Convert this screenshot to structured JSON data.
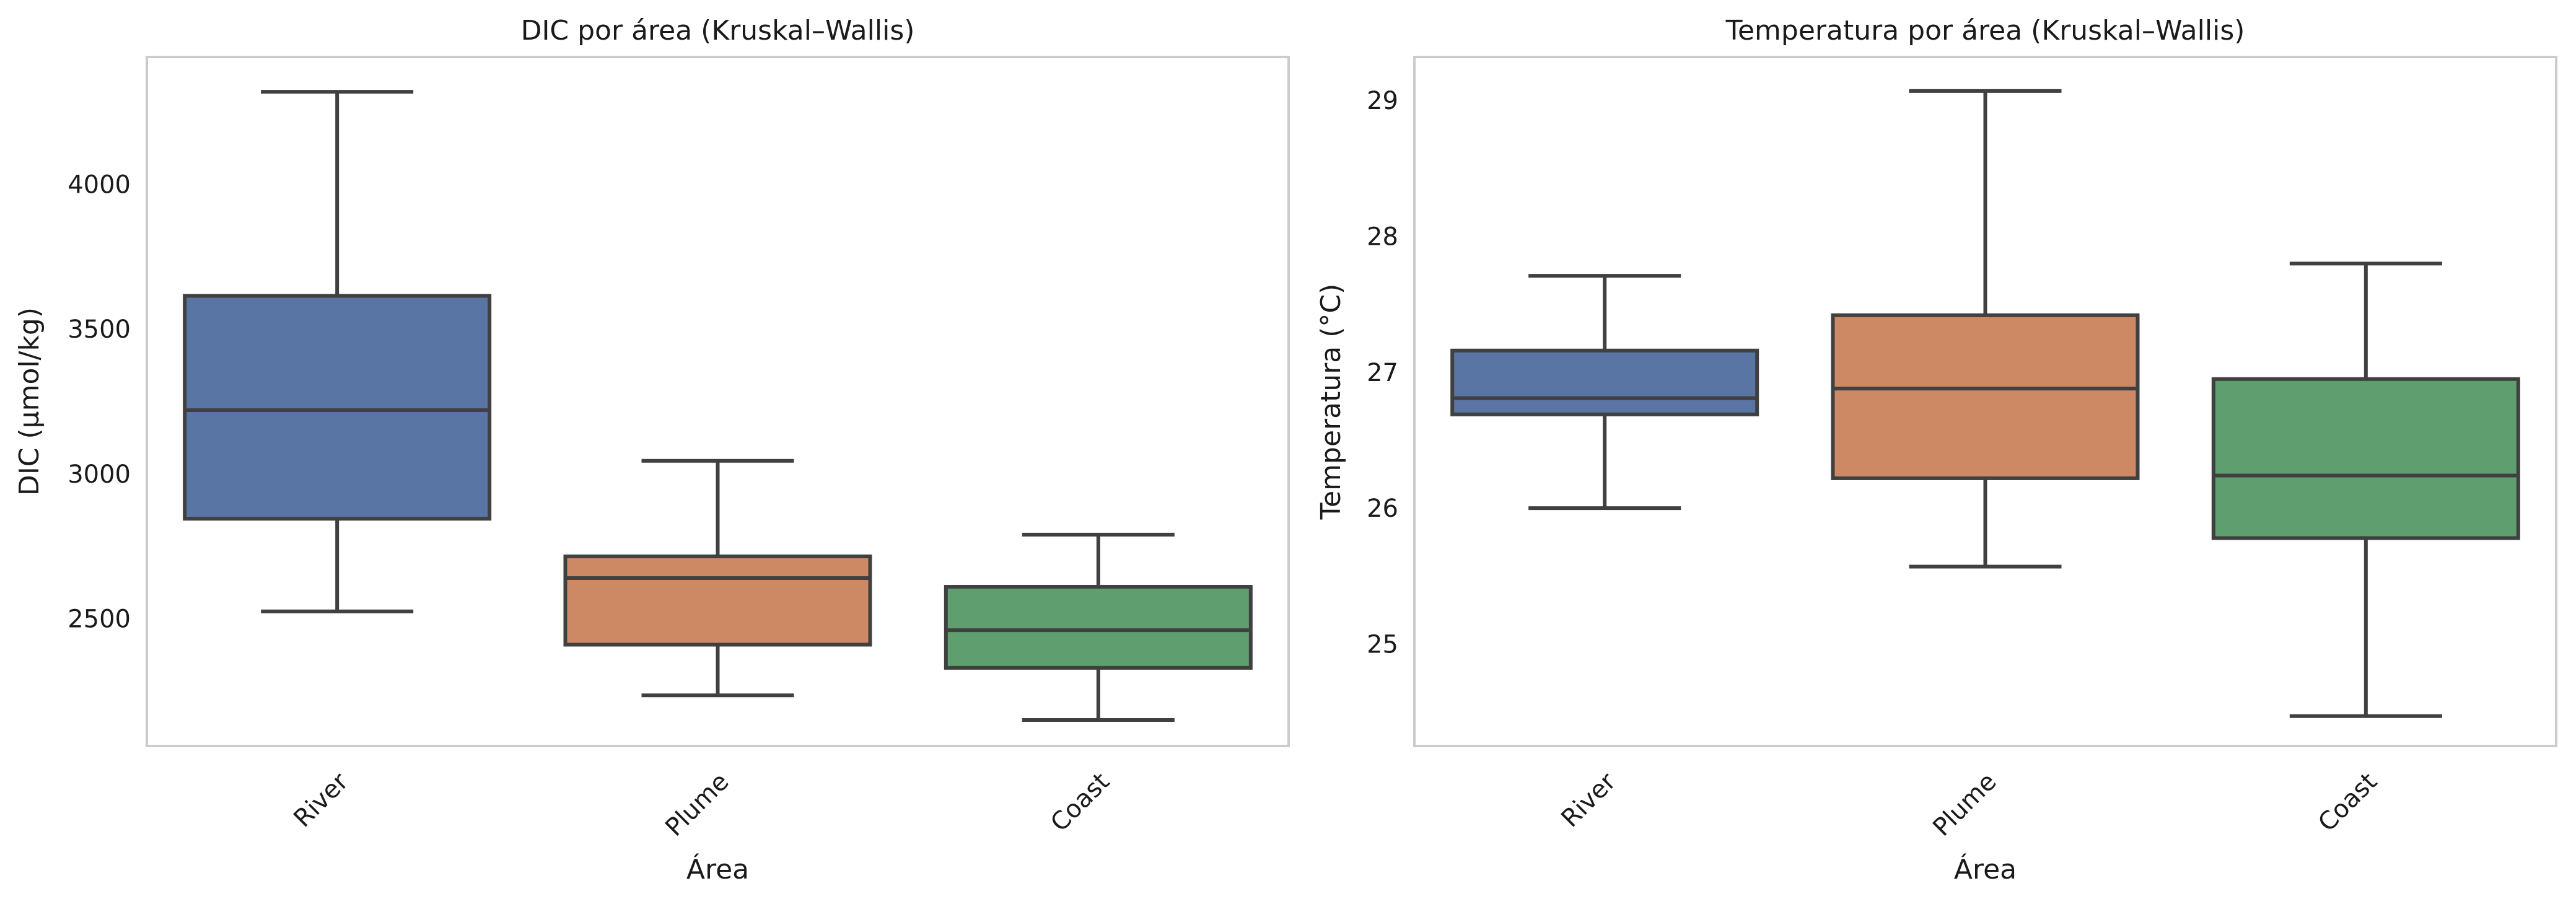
{
  "chart_data": [
    {
      "type": "boxplot",
      "title": "DIC por área (Kruskal–Wallis)",
      "xlabel": "Área",
      "ylabel": "DIC (μmol/kg)",
      "categories": [
        "River",
        "Plume",
        "Coast"
      ],
      "ylim": [
        2060,
        4440
      ],
      "yticks": [
        2500,
        3000,
        3500,
        4000
      ],
      "grid": false,
      "colors": [
        "#5975a4",
        "#cc8963",
        "#5f9e6e"
      ],
      "boxes": [
        {
          "category": "River",
          "whisker_low": 2525,
          "q1": 2845,
          "median": 3220,
          "q3": 3615,
          "whisker_high": 4320
        },
        {
          "category": "Plume",
          "whisker_low": 2235,
          "q1": 2410,
          "median": 2640,
          "q3": 2715,
          "whisker_high": 3045
        },
        {
          "category": "Coast",
          "whisker_low": 2150,
          "q1": 2330,
          "median": 2460,
          "q3": 2610,
          "whisker_high": 2790
        }
      ]
    },
    {
      "type": "boxplot",
      "title": "Temperatura por área (Kruskal–Wallis)",
      "xlabel": "Área",
      "ylabel": "Temperatura (°C)",
      "categories": [
        "River",
        "Plume",
        "Coast"
      ],
      "ylim": [
        24.25,
        29.32
      ],
      "yticks": [
        25,
        26,
        27,
        28,
        29
      ],
      "grid": false,
      "colors": [
        "#5975a4",
        "#cc8963",
        "#5f9e6e"
      ],
      "boxes": [
        {
          "category": "River",
          "whisker_low": 26.0,
          "q1": 26.69,
          "median": 26.81,
          "q3": 27.16,
          "whisker_high": 27.71
        },
        {
          "category": "Plume",
          "whisker_low": 25.57,
          "q1": 26.22,
          "median": 26.88,
          "q3": 27.42,
          "whisker_high": 29.07
        },
        {
          "category": "Coast",
          "whisker_low": 24.47,
          "q1": 25.78,
          "median": 26.24,
          "q3": 26.95,
          "whisker_high": 27.8
        }
      ]
    }
  ]
}
